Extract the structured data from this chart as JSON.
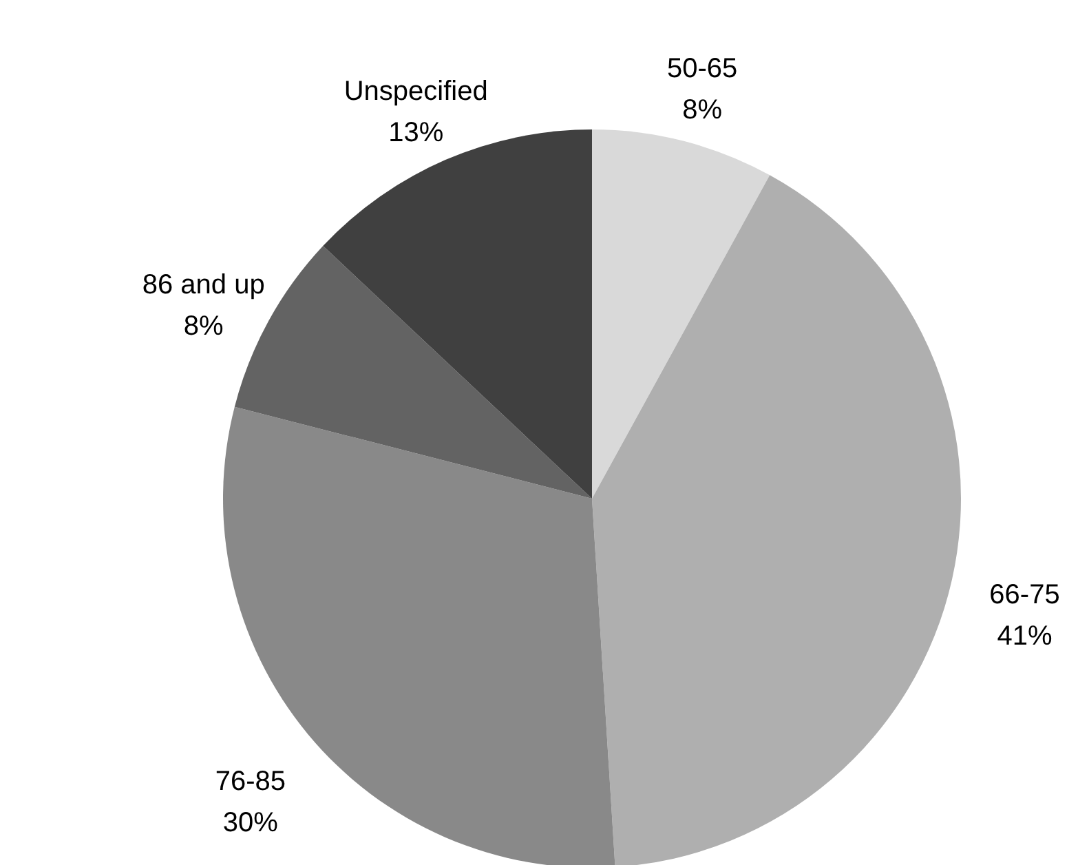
{
  "chart_data": {
    "type": "pie",
    "categories": [
      "50-65",
      "66-75",
      "76-85",
      "86 and up",
      "Unspecified"
    ],
    "values": [
      8,
      41,
      30,
      8,
      13
    ],
    "value_labels": [
      "8%",
      "41%",
      "30%",
      "8%",
      "13%"
    ],
    "colors": [
      "#d9d9d9",
      "#afafaf",
      "#898989",
      "#636363",
      "#404040"
    ]
  }
}
